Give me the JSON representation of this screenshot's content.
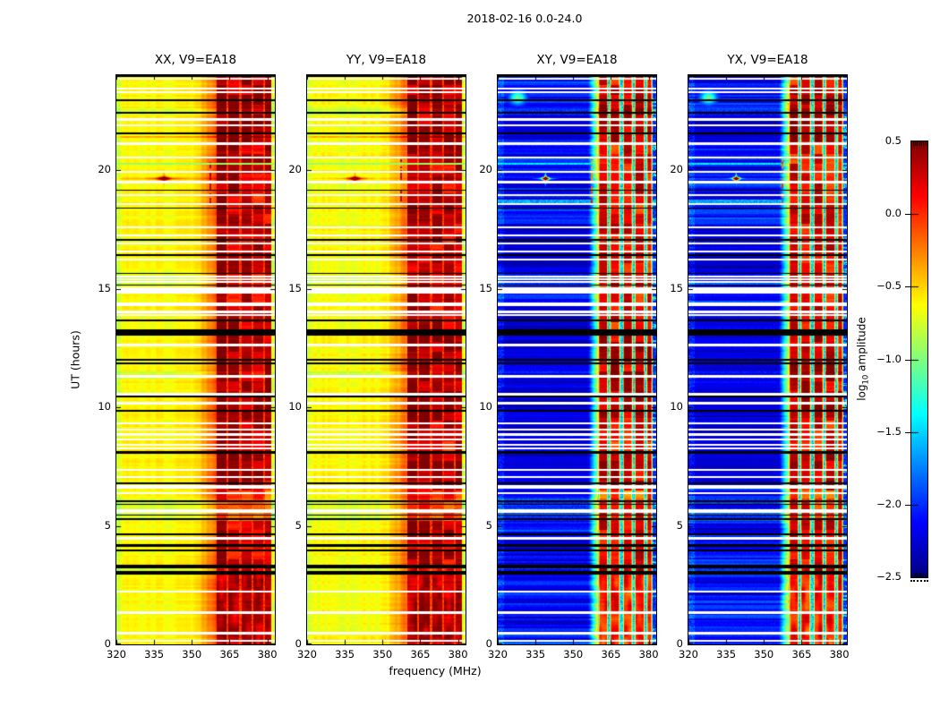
{
  "figure": {
    "background": "#ffffff"
  },
  "chart_data": {
    "type": "heatmap",
    "title": "2018-02-16 0.0-24.0",
    "xlabel": "frequency (MHz)",
    "ylabel": "UT (hours)",
    "x_axis": {
      "range": [
        320,
        383
      ],
      "unit": "MHz",
      "ticks": [
        320,
        335,
        350,
        365,
        380
      ],
      "tick_labels": [
        "320",
        "335",
        "350",
        "365",
        "380"
      ]
    },
    "y_axis": {
      "range": [
        0,
        24
      ],
      "unit": "hours",
      "ticks": [
        0,
        5,
        10,
        15,
        20
      ],
      "tick_labels": [
        "0",
        "5",
        "10",
        "15",
        "20"
      ]
    },
    "color_scale": {
      "colormap": "jet",
      "range": [
        -2.5,
        0.5
      ],
      "label": "log10 amplitude",
      "label_prefix": "log",
      "label_sub": "10",
      "label_suffix": " amplitude",
      "ticks": [
        0.5,
        0.0,
        -0.5,
        -1.0,
        -1.5,
        -2.0,
        -2.5
      ],
      "tick_labels": [
        "0.5",
        "0.0",
        "−0.5",
        "−1.0",
        "−1.5",
        "−2.0",
        "−2.5"
      ]
    },
    "panels": [
      {
        "id": "XX",
        "title": "XX, V9=EA18",
        "kind": "parallel",
        "base_level": -0.62,
        "seed": 1
      },
      {
        "id": "YY",
        "title": "YY, V9=EA18",
        "kind": "parallel",
        "base_level": -0.62,
        "seed": 2
      },
      {
        "id": "XY",
        "title": "XY, V9=EA18",
        "kind": "cross",
        "base_level": -2.3,
        "seed": 3
      },
      {
        "id": "YX",
        "title": "YX, V9=EA18",
        "kind": "cross",
        "base_level": -2.3,
        "seed": 4
      }
    ],
    "features": {
      "rfi_band": {
        "freq_start": 360.0,
        "freq_end": 381.4,
        "stripes": [
          [
            360.0,
            363.8
          ],
          [
            364.6,
            368.6
          ],
          [
            369.8,
            373.6
          ],
          [
            374.4,
            378.4
          ],
          [
            379.2,
            381.4
          ]
        ]
      },
      "narrow_line": {
        "freq": 357.3,
        "t_start": 18.55,
        "t_end": 20.45
      },
      "flare": {
        "time": 19.64,
        "freq": 339.0,
        "peak": 0.5
      },
      "cyan_blob_cross": {
        "time": 23.05,
        "freq": 328.0
      },
      "green_row": 20.25,
      "orange_row": 21.4,
      "bright_rows_cross": [
        [
          18.68,
          0.06
        ]
      ],
      "tint_zones": [
        [
          5.2,
          6.15
        ],
        [
          15.18,
          15.6
        ],
        [
          2.95,
          3.35
        ],
        [
          22.3,
          22.62
        ],
        [
          11.2,
          11.5
        ]
      ],
      "strong_zones_parallel": [
        [
          6.55,
          8.15
        ],
        [
          9.4,
          13.7
        ],
        [
          20.8,
          23.9
        ],
        [
          4.3,
          5.2
        ]
      ],
      "strong_zones_cross": [
        [
          9.55,
          13.2
        ],
        [
          6.55,
          8.1
        ],
        [
          21.2,
          23.5
        ]
      ],
      "weak_zone": [
        5.2,
        6.5
      ],
      "flagged_rows_white": [
        [
          23.85,
          0.05
        ],
        [
          23.42,
          0.04
        ],
        [
          23.28,
          0.04
        ],
        [
          22.12,
          0.05
        ],
        [
          21.9,
          0.04
        ],
        [
          21.12,
          0.05
        ],
        [
          20.52,
          0.04
        ],
        [
          19.93,
          0.05
        ],
        [
          19.48,
          0.05
        ],
        [
          18.94,
          0.04
        ],
        [
          18.58,
          0.04
        ],
        [
          17.6,
          0.04
        ],
        [
          17.25,
          0.04
        ],
        [
          16.9,
          0.04
        ],
        [
          16.55,
          0.04
        ],
        [
          16.22,
          0.04
        ],
        [
          15.52,
          0.04
        ],
        [
          15.4,
          0.04
        ],
        [
          15.27,
          0.04
        ],
        [
          14.93,
          0.12
        ],
        [
          14.33,
          0.07
        ],
        [
          14.03,
          0.05
        ],
        [
          13.9,
          0.04
        ],
        [
          12.62,
          0.05
        ],
        [
          11.3,
          0.04
        ],
        [
          10.55,
          0.05
        ],
        [
          10.17,
          0.04
        ],
        [
          9.32,
          0.05
        ],
        [
          9.06,
          0.04
        ],
        [
          8.85,
          0.04
        ],
        [
          8.63,
          0.04
        ],
        [
          8.43,
          0.04
        ],
        [
          8.28,
          0.04
        ],
        [
          7.36,
          0.05
        ],
        [
          7.06,
          0.04
        ],
        [
          6.63,
          0.08
        ],
        [
          6.38,
          0.04
        ],
        [
          5.62,
          0.07
        ],
        [
          4.48,
          0.05
        ],
        [
          2.23,
          0.05
        ],
        [
          1.35,
          0.05
        ],
        [
          0.47,
          0.05
        ],
        [
          0.14,
          0.04
        ]
      ],
      "flagged_rows_black": [
        [
          23.96,
          0.025
        ],
        [
          22.95,
          0.03
        ],
        [
          22.42,
          0.03
        ],
        [
          21.55,
          0.03
        ],
        [
          19.15,
          0.03
        ],
        [
          18.4,
          0.03
        ],
        [
          17.05,
          0.03
        ],
        [
          16.42,
          0.03
        ],
        [
          15.64,
          0.03
        ],
        [
          15.15,
          0.03
        ],
        [
          13.66,
          0.03
        ],
        [
          13.15,
          0.13
        ],
        [
          12.0,
          0.03
        ],
        [
          11.86,
          0.03
        ],
        [
          10.45,
          0.03
        ],
        [
          9.86,
          0.03
        ],
        [
          8.08,
          0.06
        ],
        [
          6.8,
          0.03
        ],
        [
          6.05,
          0.04
        ],
        [
          5.9,
          0.03
        ],
        [
          5.45,
          0.03
        ],
        [
          5.28,
          0.03
        ],
        [
          4.64,
          0.05
        ],
        [
          4.17,
          0.04
        ],
        [
          3.96,
          0.04
        ],
        [
          3.27,
          0.08
        ],
        [
          3.02,
          0.06
        ]
      ]
    }
  }
}
